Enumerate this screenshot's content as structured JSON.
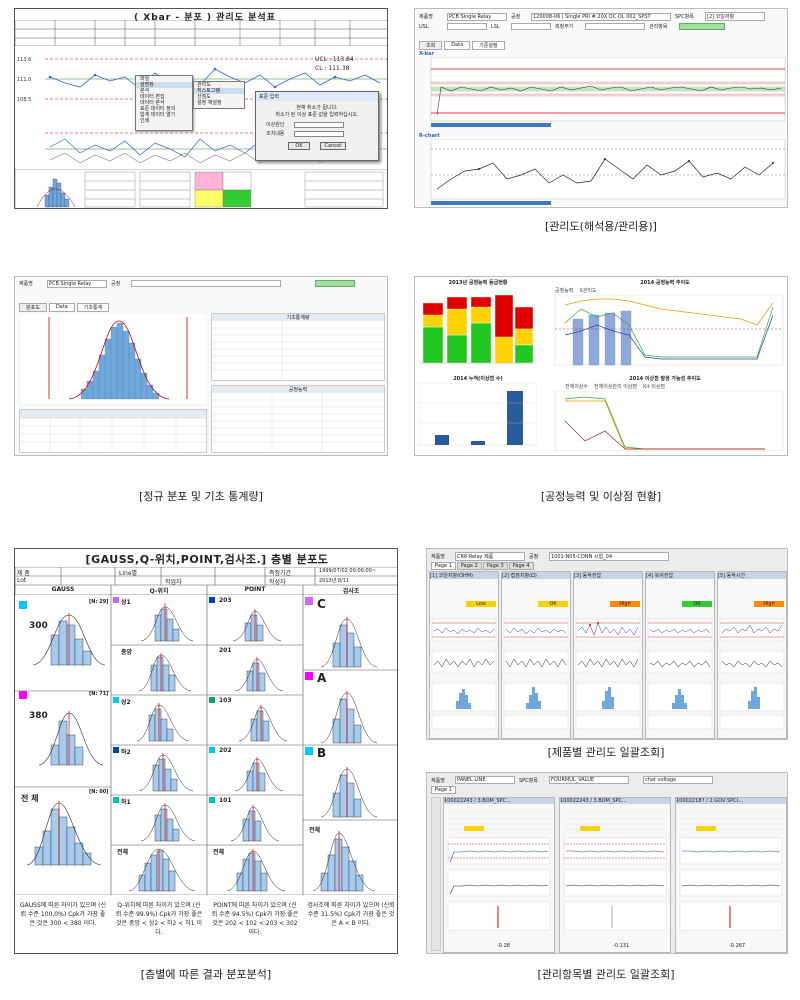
{
  "captions": {
    "p1": "",
    "p2": "[관리도(해석용/관리용)]",
    "p3": "[정규 분포 및 기초 통계량]",
    "p4": "[공정능력 및 이상점 현황]",
    "p5": "[층별에 따른 결과 분포분석]",
    "p6": "[제품별 관리도 일괄조회]",
    "p7": "[관리항목별 관리도 일괄조회]"
  },
  "p1": {
    "title": "( Xbar - 분포 ) 관리도 분석표",
    "ucl": "UCL : 113.84",
    "lcl": "CL : 111.38",
    "menu": [
      "파일",
      "설명창",
      "분석",
      "데이터 편집",
      "데이터 분석",
      "표준 데이터 정의",
      "합계 데이터 열기",
      "인쇄",
      "종료"
    ],
    "submenu": [
      "관리도",
      "히스토그램",
      "산점도",
      "설정 재설정"
    ],
    "dialog": {
      "title": "표준 입력",
      "line1": "현재 취소가 됩니다.",
      "line2": "취소가 된 이상 표준 값을 입력하십시오.",
      "field1": "이상원인",
      "field2": "조치내용",
      "ok": "OK",
      "cancel": "Cancel"
    }
  },
  "p2": {
    "header": {
      "k1": "제품명",
      "v1": "PCB Single Relay",
      "k2": "공정",
      "v2": "120008-06 | Single PRI # 20X OC OL 002_SPST",
      "k3": "SPC항목",
      "v3": "[2] 코일저항",
      "k4": "USL",
      "k5": "LSL",
      "k6": "측정주기",
      "k7": "관리항목"
    },
    "buttons": [
      "조회",
      "Data",
      "기준설정"
    ],
    "section1": "X-bar",
    "section2": "R-chart"
  },
  "p3": {
    "header": {
      "k1": "제품명",
      "v1": "PCB Single Relay",
      "k2": "공정"
    },
    "tabs": [
      "분포도",
      "Data",
      "기초통계"
    ],
    "stats_title": "기초통계량",
    "process_title": "공정능력"
  },
  "p4": {
    "titles": [
      "2013년 공정능력 등급현황",
      "2014 공정능력 추이도",
      "2014 누적(이상점 수)",
      "2014 이상점 발생 가능성 추이도"
    ],
    "legend_a": [
      "공정능력",
      "X관리도"
    ],
    "legend_b": [
      "전체이상수",
      "전체이상관리 이상점",
      "Kit 이상점"
    ]
  },
  "p5": {
    "title": "[GAUSS,Q-위치,POINT,검사조.] 층별 분포도",
    "row1": {
      "a": "제 품",
      "b": "Line별",
      "c": "측정기간",
      "d": "1999/07/02 00:00:00~"
    },
    "row2": {
      "a": "Lot",
      "b": "작업자",
      "c": "작성자",
      "d": "2013년 8/11"
    },
    "cols": [
      "GAUSS",
      "Q-위치",
      "POINT",
      "검사조"
    ],
    "c1": [
      "300",
      "380",
      "전 체"
    ],
    "c1n": [
      "[N: 29]",
      "[N: 71]",
      "[N: 00]"
    ],
    "c2": [
      "상1",
      "중앙",
      "상2",
      "하2",
      "하1",
      "전체"
    ],
    "c3": [
      "203",
      "201",
      "103",
      "202",
      "101",
      "전체"
    ],
    "c4": [
      "C",
      "A",
      "B",
      "전체"
    ],
    "foot": [
      "GAUSS에 따른 차이가 있으며 (신뢰 수준 100.0%) Cpk가 가장 좋은 것은 300 < 380 이다.",
      "Q-위치에 따른 차이가 있으며 (신뢰 수준 99.9%) Cpk가 가장 좋은 것은 중앙 < 상2 < 하2 < 하1 이다.",
      "POINT에 따른 차이가 있으며 (신뢰 수준 94.5%) Cpk가 가장 좋은 것은 202 < 102 < 203 < 302 이다.",
      "검사조에 따른 차이가 있으며 (신뢰 수준 31.5%) Cpk가 가장 좋은 것은 A < B 이다."
    ]
  },
  "p6": {
    "header": {
      "k1": "제품명",
      "v1": "CR6 Relay 제품",
      "k2": "공정",
      "v2": "1001-N05-CONN 시험_04"
    },
    "tabs": [
      "Page 1",
      "Page 2",
      "Page 3",
      "Page 4"
    ],
    "cards": [
      {
        "title": "[1] 코일저항(OHM)",
        "status": "Low"
      },
      {
        "title": "[2] 접점저항(Ω)",
        "status": "OK"
      },
      {
        "title": "[3] 동작전압",
        "status": "High"
      },
      {
        "title": "[4] 복귀전압",
        "status": "OK"
      },
      {
        "title": "[5] 동작시간",
        "status": "High"
      }
    ]
  },
  "p7": {
    "header": {
      "k1": "제품명",
      "v1": "PANEL LINE",
      "k2": "SPC항목",
      "v2": "FOURMUL_VALUE",
      "k3": "",
      "v3": "chat voltage"
    },
    "tab": "Page 1",
    "cards": [
      {
        "title": "100022243 / 3.BOM_SPC..."
      },
      {
        "title": "100022243 / 3.BOM_SPC..."
      },
      {
        "title": "100022187 / 2.GOV SPCI..."
      }
    ],
    "values": [
      "-0.28",
      "-0.131",
      "-0.267"
    ]
  },
  "colors": {
    "accent": "#2266cc",
    "ucl": "#cc0000",
    "hist": "#6fa8dc",
    "good": "#00c800",
    "warn": "#ffd200",
    "bad": "#e00000"
  }
}
